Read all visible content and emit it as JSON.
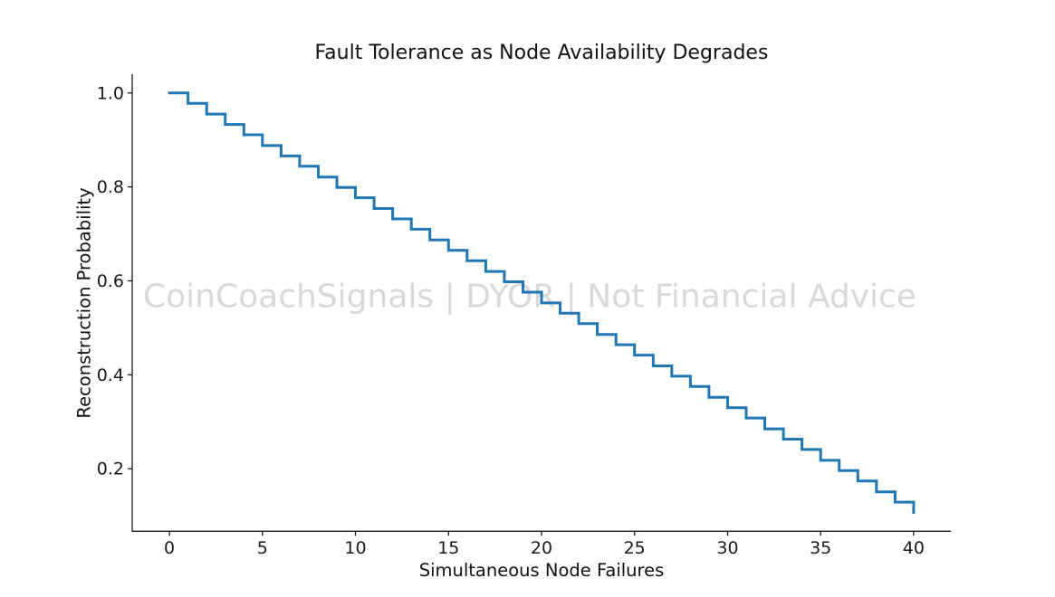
{
  "page": {
    "background": "#ffffff"
  },
  "chart_data": {
    "type": "line",
    "subtype": "step",
    "step_mode": "post",
    "title": "Fault Tolerance as Node Availability Degrades",
    "xlabel": "Simultaneous Node Failures",
    "ylabel": "Reconstruction Probability",
    "watermark": "CoinCoachSignals | DYOR | Not Financial Advice",
    "x": [
      0,
      1,
      2,
      3,
      4,
      5,
      6,
      7,
      8,
      9,
      10,
      11,
      12,
      13,
      14,
      15,
      16,
      17,
      18,
      19,
      20,
      21,
      22,
      23,
      24,
      25,
      26,
      27,
      28,
      29,
      30,
      31,
      32,
      33,
      34,
      35,
      36,
      37,
      38,
      39,
      40
    ],
    "y": [
      1.0,
      0.978,
      0.955,
      0.933,
      0.911,
      0.888,
      0.866,
      0.844,
      0.821,
      0.799,
      0.777,
      0.754,
      0.732,
      0.71,
      0.687,
      0.665,
      0.643,
      0.62,
      0.598,
      0.576,
      0.553,
      0.531,
      0.509,
      0.486,
      0.464,
      0.442,
      0.419,
      0.397,
      0.375,
      0.352,
      0.33,
      0.308,
      0.285,
      0.263,
      0.241,
      0.218,
      0.196,
      0.174,
      0.151,
      0.129,
      0.107
    ],
    "xticks": [
      0,
      5,
      10,
      15,
      20,
      25,
      30,
      35,
      40
    ],
    "yticks": [
      0.2,
      0.4,
      0.6,
      0.8,
      1.0
    ],
    "xlim": [
      -2,
      42
    ],
    "ylim": [
      0.067,
      1.04
    ],
    "grid": false,
    "legend_position": "none",
    "line_color": "#1f77b4",
    "line_width": 3,
    "axis_color": "#1a1a1a",
    "tick_label_color": "#1a1a1a",
    "watermark_color": "#d8d8d8"
  }
}
